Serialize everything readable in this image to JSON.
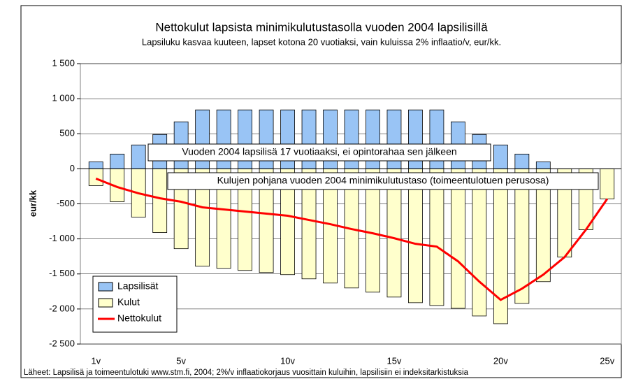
{
  "chart_data": {
    "type": "bar",
    "title": "Nettokulut lapsista minimikulutustasolla vuoden 2004 lapsilisillä",
    "subtitle": "Lapsiluku kasvaa kuuteen, lapset kotona 20 vuotiaksi, vain kuluissa 2% inflaatio/v, eur/kk.",
    "y_label": "eur/kk",
    "source": "Läheet: Lapsilisä ja toimeentulotuki www.stm.fi, 2004; 2%/v inflaatiokorjaus vuosittain kuluihin, lapsilisiin ei indeksitarkistuksia",
    "annotations": [
      "Vuoden 2004 lapsilisä 17 vuotiaaksi, ei opintorahaa sen jälkeen",
      "Kulujen pohjana vuoden 2004 minimikulutustaso (toimeentulotuen perusosa)"
    ],
    "categories": [
      "1v",
      null,
      null,
      null,
      "5v",
      null,
      null,
      null,
      null,
      "10v",
      null,
      null,
      null,
      null,
      "15v",
      null,
      null,
      null,
      null,
      "20v",
      null,
      null,
      null,
      null,
      "25v"
    ],
    "series": [
      {
        "name": "Lapsilisät",
        "type": "bar",
        "color": "#99c4f5",
        "values": [
          100,
          210,
          340,
          490,
          670,
          840,
          840,
          840,
          840,
          840,
          840,
          840,
          840,
          840,
          840,
          840,
          840,
          670,
          490,
          340,
          210,
          100,
          0,
          0,
          0
        ]
      },
      {
        "name": "Kulut",
        "type": "bar",
        "color": "#ffffcc",
        "values": [
          -240,
          -470,
          -690,
          -910,
          -1140,
          -1390,
          -1420,
          -1450,
          -1480,
          -1510,
          -1570,
          -1630,
          -1700,
          -1760,
          -1830,
          -1910,
          -1950,
          -1990,
          -2100,
          -2210,
          -1920,
          -1610,
          -1260,
          -870,
          -430
        ]
      },
      {
        "name": "Nettokulut",
        "type": "line",
        "color": "#ff0000",
        "values": [
          -140,
          -260,
          -350,
          -420,
          -470,
          -550,
          -580,
          -610,
          -640,
          -670,
          -730,
          -790,
          -860,
          -920,
          -990,
          -1070,
          -1110,
          -1320,
          -1610,
          -1870,
          -1710,
          -1510,
          -1260,
          -870,
          -430
        ]
      }
    ],
    "ylim": [
      -2500,
      1500
    ],
    "yticks": [
      {
        "value": -2500,
        "label": "-2 500"
      },
      {
        "value": -2000,
        "label": "-2 000"
      },
      {
        "value": -1500,
        "label": "-1 500"
      },
      {
        "value": -1000,
        "label": "-1 000"
      },
      -500,
      0,
      500,
      {
        "value": 1000,
        "label": "1 000"
      },
      {
        "value": 1500,
        "label": "1 500"
      }
    ],
    "grid": true,
    "legend": "lower left"
  }
}
